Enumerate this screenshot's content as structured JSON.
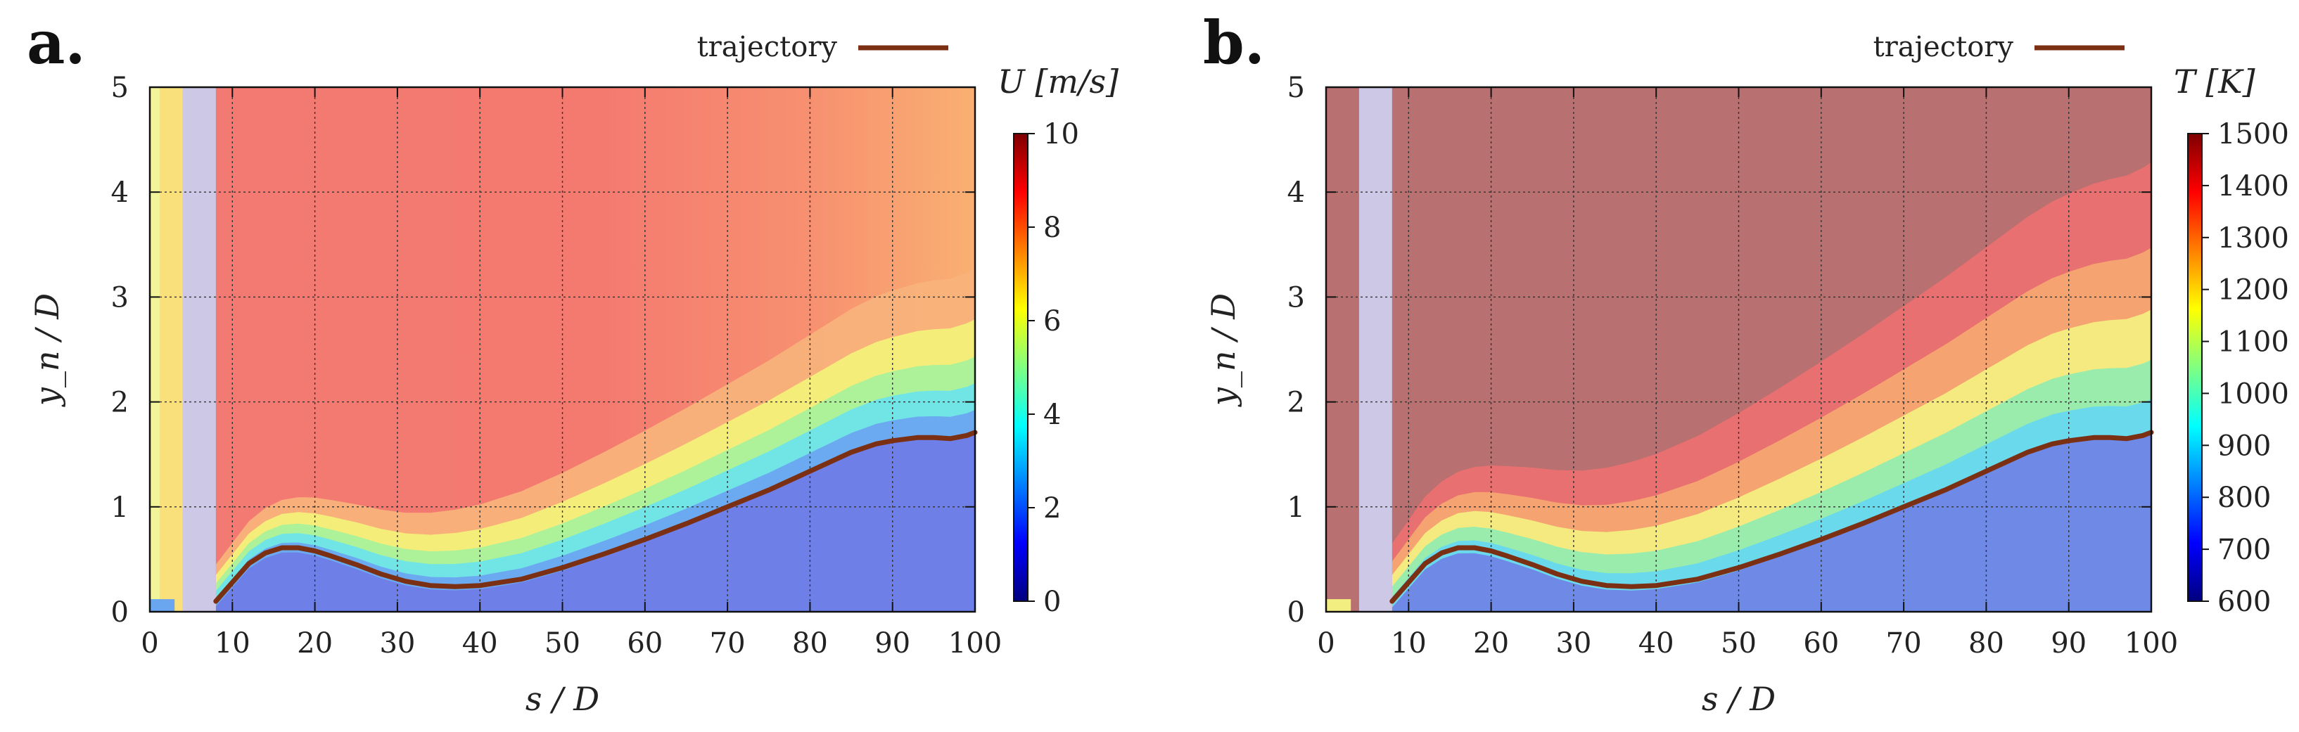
{
  "chart_data": [
    {
      "type": "heatmap",
      "panel_label": "a.",
      "title": "",
      "xlabel": "s / D",
      "ylabel": "y_n / D",
      "xlim": [
        0,
        100
      ],
      "ylim": [
        0,
        5
      ],
      "x_ticks": [
        "0",
        "10",
        "20",
        "30",
        "40",
        "50",
        "60",
        "70",
        "80",
        "90",
        "100"
      ],
      "y_ticks": [
        "0",
        "1",
        "2",
        "3",
        "4",
        "5"
      ],
      "grid": true,
      "legend": {
        "label": "trajectory",
        "color": "#7b3014",
        "position": "top-right"
      },
      "colorbar": {
        "label": "U [m/s]",
        "range": [
          0,
          10
        ],
        "ticks": [
          "0",
          "2",
          "4",
          "6",
          "8",
          "10"
        ],
        "colors": [
          "#00007f",
          "#0000ff",
          "#0080ff",
          "#00ffff",
          "#80ff80",
          "#ffff00",
          "#ff8000",
          "#ff0000",
          "#7f0000"
        ]
      },
      "masked_band_x": [
        4,
        8
      ],
      "field": "velocity",
      "trajectory": {
        "x": [
          8,
          10,
          12,
          14,
          16,
          18,
          20,
          22,
          25,
          28,
          31,
          34,
          37,
          40,
          45,
          50,
          55,
          60,
          65,
          70,
          75,
          80,
          85,
          88,
          90,
          93,
          95,
          97,
          99,
          100
        ],
        "y": [
          0.1,
          0.28,
          0.46,
          0.56,
          0.61,
          0.61,
          0.58,
          0.53,
          0.45,
          0.36,
          0.29,
          0.25,
          0.24,
          0.25,
          0.31,
          0.42,
          0.55,
          0.69,
          0.84,
          1.0,
          1.16,
          1.34,
          1.52,
          1.6,
          1.63,
          1.66,
          1.66,
          1.65,
          1.68,
          1.71
        ]
      }
    },
    {
      "type": "heatmap",
      "panel_label": "b.",
      "title": "",
      "xlabel": "s / D",
      "ylabel": "y_n / D",
      "xlim": [
        0,
        100
      ],
      "ylim": [
        0,
        5
      ],
      "x_ticks": [
        "0",
        "10",
        "20",
        "30",
        "40",
        "50",
        "60",
        "70",
        "80",
        "90",
        "100"
      ],
      "y_ticks": [
        "0",
        "1",
        "2",
        "3",
        "4",
        "5"
      ],
      "grid": true,
      "legend": {
        "label": "trajectory",
        "color": "#7b3014",
        "position": "top-right"
      },
      "colorbar": {
        "label": "T [K]",
        "range": [
          600,
          1500
        ],
        "ticks": [
          "600",
          "700",
          "800",
          "900",
          "1000",
          "1100",
          "1200",
          "1300",
          "1400",
          "1500"
        ],
        "colors": [
          "#00007f",
          "#0000ff",
          "#0080ff",
          "#00ffff",
          "#80ff80",
          "#ffff00",
          "#ff8000",
          "#ff0000",
          "#7f0000"
        ]
      },
      "masked_band_x": [
        4,
        8
      ],
      "field": "temperature",
      "trajectory": {
        "x": [
          8,
          10,
          12,
          14,
          16,
          18,
          20,
          22,
          25,
          28,
          31,
          34,
          37,
          40,
          45,
          50,
          55,
          60,
          65,
          70,
          75,
          80,
          85,
          88,
          90,
          93,
          95,
          97,
          99,
          100
        ],
        "y": [
          0.1,
          0.28,
          0.46,
          0.56,
          0.61,
          0.61,
          0.58,
          0.53,
          0.45,
          0.36,
          0.29,
          0.25,
          0.24,
          0.25,
          0.31,
          0.42,
          0.55,
          0.69,
          0.84,
          1.0,
          1.16,
          1.34,
          1.52,
          1.6,
          1.63,
          1.66,
          1.66,
          1.65,
          1.68,
          1.71
        ]
      }
    }
  ]
}
